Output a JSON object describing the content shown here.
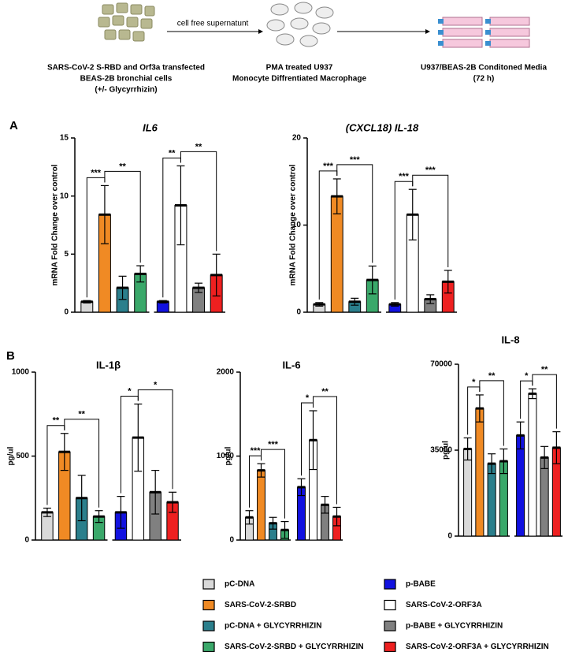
{
  "schematic": {
    "arrow_label": "cell free supernatunt",
    "left_caption": [
      "SARS-CoV-2  S-RBD and Orf3a transfected",
      "BEAS-2B bronchial cells",
      "(+/- Glycyrrhizin)"
    ],
    "middle_caption": [
      "PMA treated U937",
      "Monocyte Diffrentiated Macrophage"
    ],
    "right_caption": [
      "U937/BEAS-2B Conditoned Media",
      "(72 h)"
    ]
  },
  "panels": [
    "A",
    "B"
  ],
  "legend": [
    {
      "name": "pC-DNA",
      "color": "#d9d9d9"
    },
    {
      "name": "SARS-CoV-2-SRBD",
      "color": "#f08a24"
    },
    {
      "name": "pC-DNA + GLYCYRRHIZIN",
      "color": "#2b7f8c"
    },
    {
      "name": "SARS-CoV-2-SRBD + GLYCYRRHIZIN",
      "color": "#3aa86a"
    },
    {
      "name": "p-BABE",
      "color": "#1212e0"
    },
    {
      "name": "SARS-CoV-2-ORF3A",
      "color": "#ffffff"
    },
    {
      "name": "p-BABE + GLYCYRRHIZIN",
      "color": "#808080"
    },
    {
      "name": "SARS-CoV-2-ORF3A + GLYCYRRHIZIN",
      "color": "#ee2020"
    }
  ],
  "chart_data": [
    {
      "type": "bar",
      "title": "IL6",
      "ylabel": "mRNA Fold Change over control",
      "values": [
        0.9,
        8.4,
        2.1,
        3.3,
        0.9,
        9.2,
        2.1,
        3.2
      ],
      "errors": [
        0.1,
        2.5,
        1.0,
        0.7,
        0.1,
        3.4,
        0.4,
        1.8
      ],
      "ylim": [
        0,
        15
      ],
      "yticks": [
        0,
        5,
        10,
        15
      ],
      "annotations": [
        "***",
        "**",
        "**",
        "**"
      ]
    },
    {
      "type": "bar",
      "title": "(CXCL18) IL-18",
      "ylabel": "mRNA Fold Change over control",
      "values": [
        0.9,
        13.3,
        1.2,
        3.7,
        0.9,
        11.2,
        1.5,
        3.5
      ],
      "errors": [
        0.2,
        2.0,
        0.4,
        1.6,
        0.2,
        2.9,
        0.5,
        1.3
      ],
      "ylim": [
        0,
        20
      ],
      "yticks": [
        0,
        10,
        20
      ],
      "annotations": [
        "***",
        "***",
        "***",
        "***"
      ]
    },
    {
      "type": "bar",
      "title": "IL-1β",
      "ylabel": "pg/ul",
      "values": [
        165,
        525,
        250,
        140,
        165,
        610,
        285,
        225
      ],
      "errors": [
        25,
        110,
        135,
        35,
        95,
        200,
        130,
        60
      ],
      "ylim": [
        0,
        1000
      ],
      "yticks": [
        0,
        500,
        1000
      ],
      "annotations": [
        "**",
        "**",
        "*",
        "*"
      ]
    },
    {
      "type": "bar",
      "title": "IL-6",
      "ylabel": "pg/ul",
      "values": [
        270,
        830,
        200,
        120,
        630,
        1190,
        420,
        280
      ],
      "errors": [
        80,
        80,
        70,
        100,
        100,
        350,
        100,
        110
      ],
      "ylim": [
        0,
        2000
      ],
      "yticks": [
        0,
        1000,
        2000
      ],
      "annotations": [
        "***",
        "***",
        "*",
        "**"
      ]
    },
    {
      "type": "bar",
      "title": "IL-8",
      "ylabel": "pg/ul",
      "values": [
        35500,
        52000,
        29500,
        30500,
        41000,
        58000,
        32000,
        36000
      ],
      "errors": [
        4500,
        5500,
        4000,
        5000,
        5500,
        2000,
        4500,
        6500
      ],
      "ylim": [
        0,
        70000
      ],
      "yticks": [
        0,
        35000,
        70000
      ],
      "annotations": [
        "*",
        "**",
        "*",
        "**"
      ]
    }
  ]
}
